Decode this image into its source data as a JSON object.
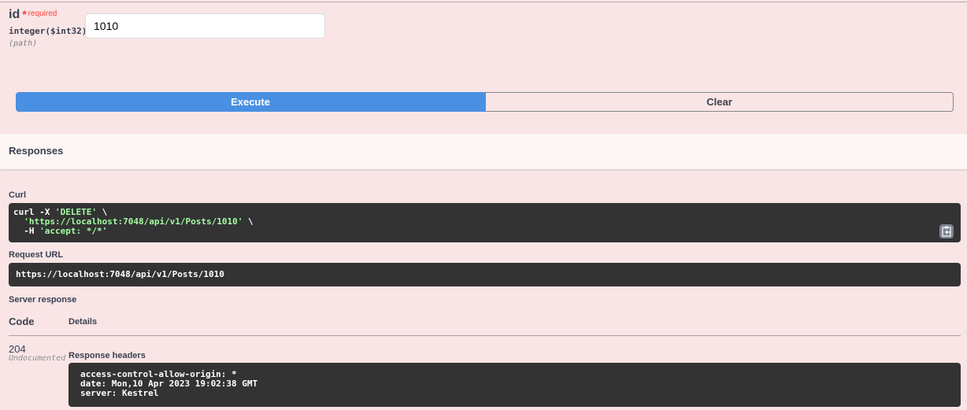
{
  "parameter": {
    "name": "id",
    "required_mark": "*",
    "required_label": "required",
    "type": "integer",
    "format": "($int32)",
    "location": "(path)",
    "value": "1010"
  },
  "buttons": {
    "execute": "Execute",
    "clear": "Clear"
  },
  "responses_title": "Responses",
  "curl": {
    "label": "Curl",
    "line1_cmd": "curl -X ",
    "line1_method": "'DELETE'",
    "line1_end": " \\",
    "line2_url": "'https://localhost:7048/api/v1/Posts/1010'",
    "line2_end": " \\",
    "line3_cmd": "-H ",
    "line3_header": "'accept: */*'",
    "copy_icon": "clipboard-copy-icon"
  },
  "request_url": {
    "label": "Request URL",
    "value": "https://localhost:7048/api/v1/Posts/1010"
  },
  "server_response": {
    "label": "Server response",
    "col_code": "Code",
    "col_details": "Details",
    "code": "204",
    "code_note": "Undocumented",
    "headers_label": "Response headers",
    "headers": [
      "access-control-allow-origin: *",
      "date: Mon,10 Apr 2023 19:02:38 GMT",
      "server: Kestrel"
    ]
  },
  "colors": {
    "background": "#f9e5e5",
    "execute": "#4990e2",
    "code_bg": "#333333",
    "string": "#a2fca2",
    "required": "#f93e3e"
  }
}
